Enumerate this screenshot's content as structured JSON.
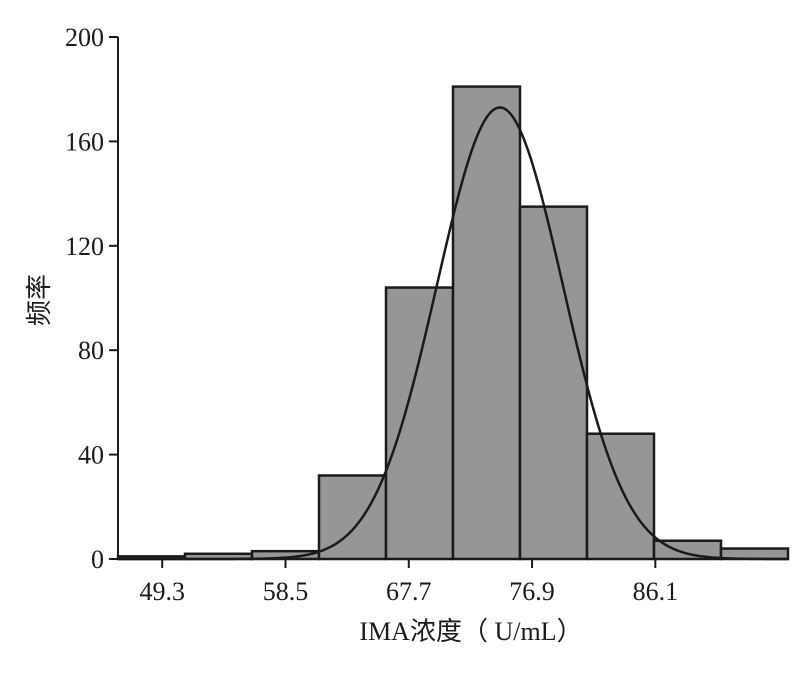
{
  "chart_data": {
    "type": "histogram",
    "xlabel": "IMA浓度（ U/mL）",
    "ylabel": "频率",
    "xlim": [
      46.0,
      96.0
    ],
    "ylim": [
      0,
      200
    ],
    "x_ticks": [
      "49.3",
      "58.5",
      "67.7",
      "76.9",
      "86.1"
    ],
    "x_tick_values": [
      49.3,
      58.5,
      67.7,
      76.9,
      86.1
    ],
    "y_ticks": [
      "0",
      "40",
      "80",
      "120",
      "160",
      "200"
    ],
    "y_tick_values": [
      0,
      40,
      80,
      120,
      160,
      200
    ],
    "bins": [
      {
        "start": 46.0,
        "end": 51.0,
        "value": 1
      },
      {
        "start": 51.0,
        "end": 56.0,
        "value": 2
      },
      {
        "start": 56.0,
        "end": 61.0,
        "value": 3
      },
      {
        "start": 61.0,
        "end": 66.0,
        "value": 32
      },
      {
        "start": 66.0,
        "end": 71.0,
        "value": 104
      },
      {
        "start": 71.0,
        "end": 76.0,
        "value": 181
      },
      {
        "start": 76.0,
        "end": 81.0,
        "value": 135
      },
      {
        "start": 81.0,
        "end": 86.0,
        "value": 48
      },
      {
        "start": 86.0,
        "end": 91.0,
        "value": 7
      },
      {
        "start": 91.0,
        "end": 96.0,
        "value": 4
      }
    ],
    "normal_curve": {
      "mean": 74.5,
      "sd": 4.7,
      "peak": 173
    },
    "colors": {
      "bar_fill": "#969696",
      "stroke": "#1a1a1a"
    }
  }
}
